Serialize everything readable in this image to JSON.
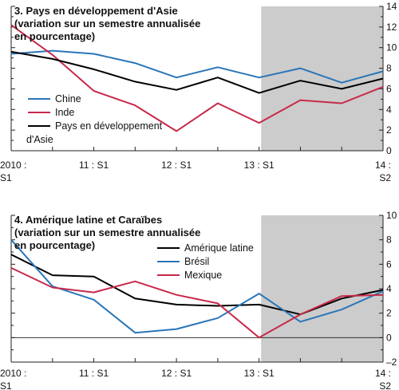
{
  "chart_data": [
    {
      "type": "line",
      "title_lines": [
        "3. Pays en développement d'Asie",
        "(variation sur un semestre annualisée",
        "en pourcentage)"
      ],
      "x_ticks": [
        {
          "x": 0,
          "lines": [
            "2010 :",
            "S1"
          ]
        },
        {
          "x": 2,
          "lines": [
            "11 : S1"
          ]
        },
        {
          "x": 4,
          "lines": [
            "12 : S1"
          ]
        },
        {
          "x": 6,
          "lines": [
            "13 : S1"
          ]
        },
        {
          "x": 9,
          "lines": [
            "14 :",
            "S2"
          ]
        }
      ],
      "xlim": [
        0,
        9
      ],
      "ylim": [
        0,
        14
      ],
      "y_ticks": [
        "0",
        "2",
        "4",
        "6",
        "8",
        "10",
        "12",
        "14"
      ],
      "y_tick_values": [
        0,
        2,
        4,
        6,
        8,
        10,
        12,
        14
      ],
      "shaded_region": [
        6.05,
        9
      ],
      "shade_color": "#cccccc",
      "series": [
        {
          "name": "Chine",
          "color": "#2a76b8",
          "values": [
            9.4,
            9.7,
            9.4,
            8.5,
            7.1,
            8.1,
            7.1,
            8.0,
            6.6,
            7.7
          ]
        },
        {
          "name": "Inde",
          "color": "#c8294b",
          "values": [
            12.2,
            9.3,
            5.8,
            4.4,
            1.9,
            4.6,
            2.7,
            4.9,
            4.6,
            6.2
          ]
        },
        {
          "name": "Pays en développement",
          "name_line2": "d'Asie",
          "color": "#000000",
          "values": [
            9.6,
            8.9,
            7.9,
            6.7,
            5.9,
            7.1,
            5.6,
            6.8,
            6.0,
            7.0
          ]
        }
      ],
      "legend_position": "left"
    },
    {
      "type": "line",
      "title_lines": [
        "4. Amérique latine et Caraïbes",
        "(variation sur un semestre annualisée",
        "en pourcentage)"
      ],
      "x_ticks": [
        {
          "x": 0,
          "lines": [
            "2010 :",
            "S1"
          ]
        },
        {
          "x": 2,
          "lines": [
            "11 : S1"
          ]
        },
        {
          "x": 4,
          "lines": [
            "12 : S1"
          ]
        },
        {
          "x": 6,
          "lines": [
            "13 : S1"
          ]
        },
        {
          "x": 9,
          "lines": [
            "14 :",
            "S2"
          ]
        }
      ],
      "xlim": [
        0,
        9
      ],
      "ylim": [
        -2,
        10
      ],
      "y_ticks": [
        "–2",
        "0",
        "2",
        "4",
        "6",
        "8",
        "10"
      ],
      "y_tick_values": [
        -2,
        0,
        2,
        4,
        6,
        8,
        10
      ],
      "zero_line": true,
      "shaded_region": [
        6.05,
        9
      ],
      "shade_color": "#cccccc",
      "series": [
        {
          "name": "Amérique latine",
          "color": "#000000",
          "values": [
            6.8,
            5.1,
            5.0,
            3.2,
            2.7,
            2.6,
            2.7,
            1.9,
            3.2,
            3.9
          ]
        },
        {
          "name": "Brésil",
          "color": "#2a76b8",
          "values": [
            8.0,
            4.2,
            3.1,
            0.4,
            0.7,
            1.6,
            3.6,
            1.3,
            2.3,
            3.8
          ]
        },
        {
          "name": "Mexique",
          "color": "#c8294b",
          "values": [
            5.7,
            4.1,
            3.7,
            4.6,
            3.5,
            2.8,
            0.0,
            1.9,
            3.4,
            3.5
          ]
        }
      ],
      "legend_position": "top-right"
    }
  ]
}
